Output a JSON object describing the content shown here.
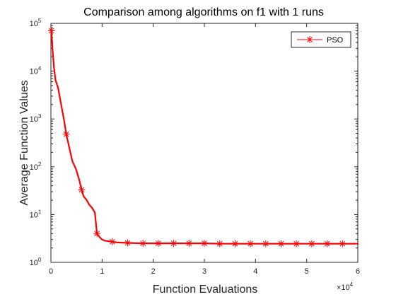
{
  "chart_data": {
    "type": "line",
    "title": "Comparison among algorithms on f1 with 1 runs",
    "xlabel": "Function Evaluations",
    "ylabel": "Average Function Values",
    "x_exponent_label": "×10",
    "x_exponent_power": "4",
    "xlim": [
      0,
      60000
    ],
    "ylim": [
      1,
      100000
    ],
    "yscale": "log",
    "x_ticks": [
      0,
      10000,
      20000,
      30000,
      40000,
      50000,
      60000
    ],
    "x_tick_labels": [
      "0",
      "1",
      "2",
      "3",
      "4",
      "5",
      "6"
    ],
    "y_ticks": [
      1,
      10,
      100,
      1000,
      10000,
      100000
    ],
    "y_tick_bases": [
      "10",
      "10",
      "10",
      "10",
      "10",
      "10"
    ],
    "y_tick_powers": [
      "0",
      "1",
      "2",
      "3",
      "4",
      "5"
    ],
    "grid": false,
    "legend_position": "top-right",
    "series": [
      {
        "name": "PSO",
        "color": "#ff0000",
        "marker": "asterisk",
        "line": [
          [
            100,
            70000
          ],
          [
            300,
            30000
          ],
          [
            600,
            12000
          ],
          [
            900,
            6500
          ],
          [
            1400,
            4500
          ],
          [
            2000,
            2000
          ],
          [
            2600,
            900
          ],
          [
            3000,
            480
          ],
          [
            3600,
            250
          ],
          [
            4200,
            130
          ],
          [
            4900,
            90
          ],
          [
            5500,
            55
          ],
          [
            6000,
            33
          ],
          [
            6400,
            24
          ],
          [
            7000,
            20
          ],
          [
            7500,
            16
          ],
          [
            8000,
            14
          ],
          [
            8600,
            11
          ],
          [
            9000,
            4.0
          ],
          [
            9500,
            3.4
          ],
          [
            10000,
            3.0
          ],
          [
            10500,
            2.85
          ],
          [
            11000,
            2.8
          ],
          [
            12000,
            2.7
          ],
          [
            13000,
            2.6
          ],
          [
            15000,
            2.55
          ],
          [
            18000,
            2.5
          ],
          [
            21000,
            2.5
          ],
          [
            24000,
            2.5
          ],
          [
            27000,
            2.5
          ],
          [
            30000,
            2.5
          ],
          [
            33000,
            2.45
          ],
          [
            36000,
            2.45
          ],
          [
            39000,
            2.45
          ],
          [
            42000,
            2.45
          ],
          [
            45000,
            2.45
          ],
          [
            48000,
            2.45
          ],
          [
            51000,
            2.45
          ],
          [
            54000,
            2.45
          ],
          [
            57000,
            2.45
          ],
          [
            60000,
            2.45
          ]
        ],
        "markers": [
          [
            100,
            70000
          ],
          [
            3000,
            480
          ],
          [
            6000,
            33
          ],
          [
            9000,
            4.0
          ],
          [
            12000,
            2.7
          ],
          [
            15000,
            2.55
          ],
          [
            18000,
            2.5
          ],
          [
            21000,
            2.5
          ],
          [
            24000,
            2.5
          ],
          [
            27000,
            2.5
          ],
          [
            30000,
            2.5
          ],
          [
            33000,
            2.45
          ],
          [
            36000,
            2.45
          ],
          [
            39000,
            2.45
          ],
          [
            42000,
            2.45
          ],
          [
            45000,
            2.45
          ],
          [
            48000,
            2.45
          ],
          [
            51000,
            2.45
          ],
          [
            54000,
            2.45
          ],
          [
            57000,
            2.45
          ]
        ]
      }
    ]
  }
}
